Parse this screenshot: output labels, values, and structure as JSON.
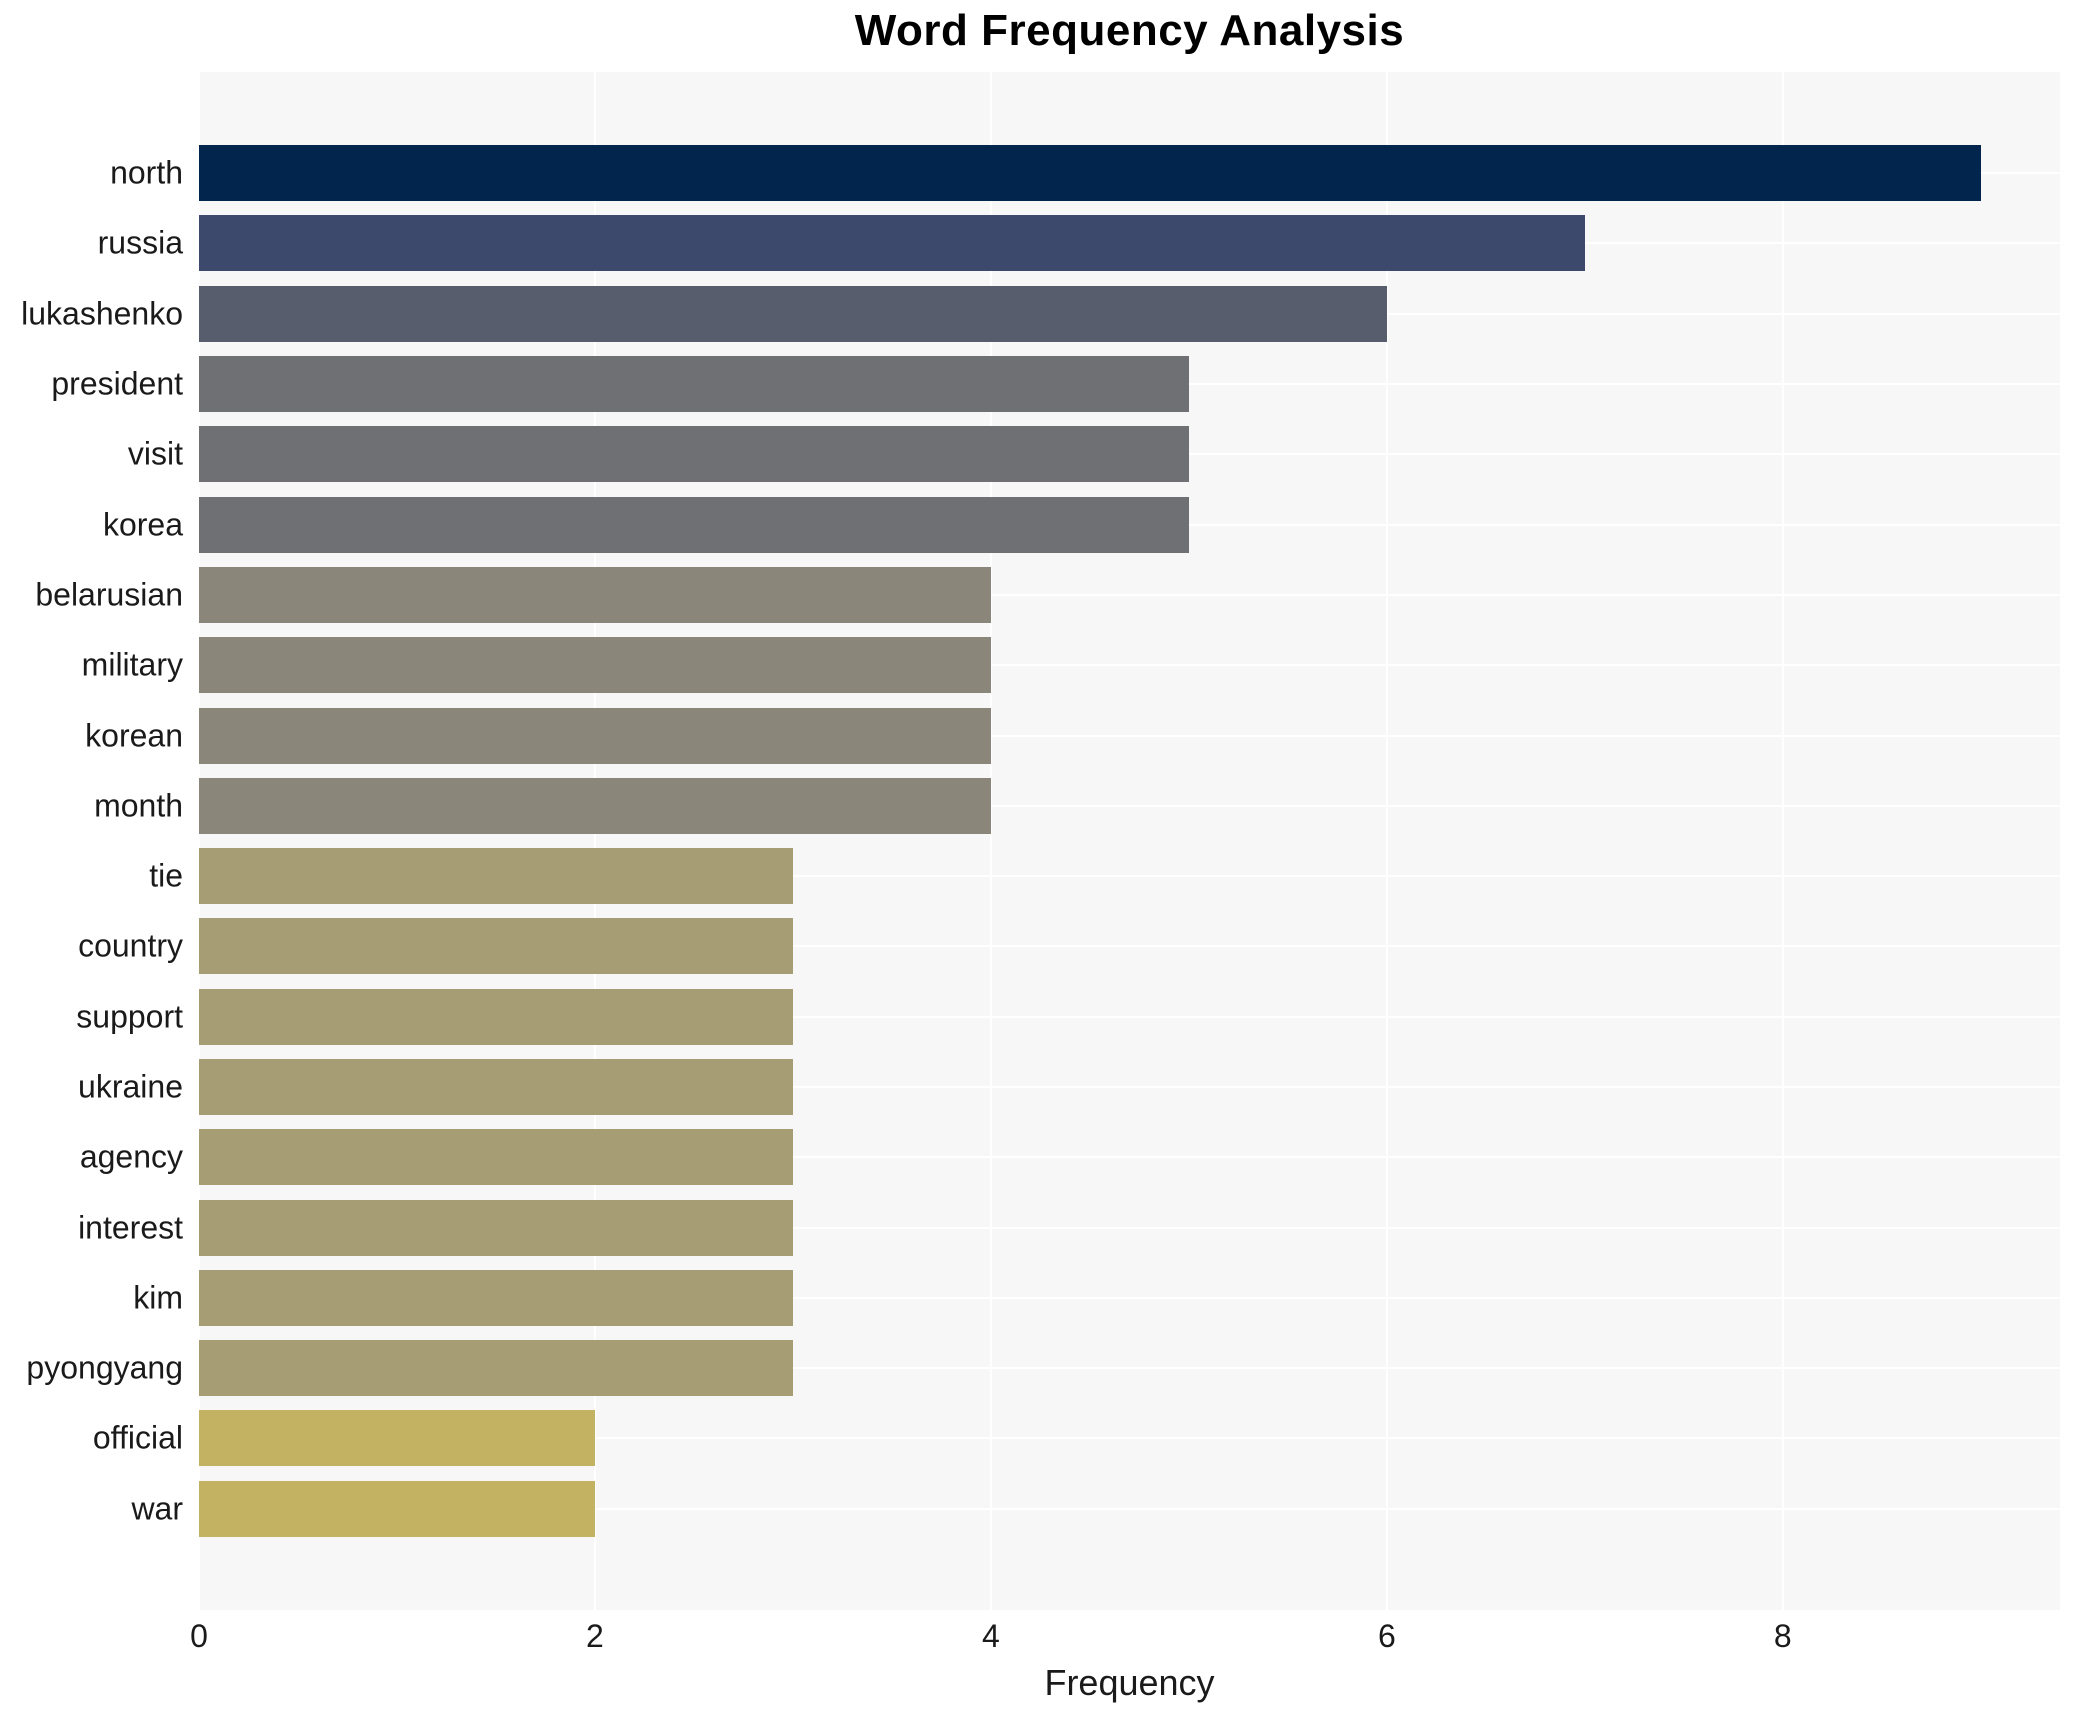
{
  "title": "Word Frequency Analysis",
  "axes": {
    "xlabel": "Frequency"
  },
  "chart_data": {
    "type": "bar",
    "orientation": "horizontal",
    "title": "Word Frequency Analysis",
    "xlabel": "Frequency",
    "ylabel": "",
    "xlim": [
      0,
      9.4
    ],
    "x_ticks": [
      0,
      2,
      4,
      6,
      8
    ],
    "grid": true,
    "legend": false,
    "plot_background": "#f7f7f7",
    "gridline_color": "#ffffff",
    "categories": [
      "north",
      "russia",
      "lukashenko",
      "president",
      "visit",
      "korea",
      "belarusian",
      "military",
      "korean",
      "month",
      "tie",
      "country",
      "support",
      "ukraine",
      "agency",
      "interest",
      "kim",
      "pyongyang",
      "official",
      "war"
    ],
    "values": [
      9,
      7,
      6,
      5,
      5,
      5,
      4,
      4,
      4,
      4,
      3,
      3,
      3,
      3,
      3,
      3,
      3,
      3,
      2,
      2
    ],
    "bar_colors": [
      "#02254e",
      "#3c496c",
      "#575d6d",
      "#6f7074",
      "#6f7074",
      "#6f7074",
      "#8a877a",
      "#8a877a",
      "#8a877a",
      "#8a877a",
      "#a69d74",
      "#a69d74",
      "#a69d74",
      "#a69d74",
      "#a69d74",
      "#a69d74",
      "#a69d74",
      "#a69d74",
      "#c3b262",
      "#c3b262"
    ]
  }
}
